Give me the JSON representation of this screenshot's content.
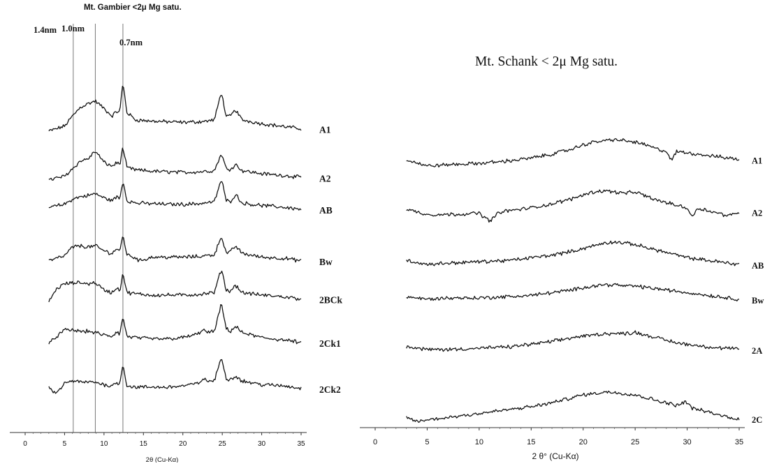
{
  "chart_data": [
    {
      "type": "line",
      "title": "Mt. Gambier   <2μ  Mg satu.",
      "xlabel": "2θ (Cu-Kα)",
      "xlim": [
        0,
        35
      ],
      "x_ticks": [
        "0",
        "5",
        "10",
        "15",
        "20",
        "25",
        "30",
        "35"
      ],
      "reference_lines": [
        {
          "label": "1.4nm",
          "x": 6.1
        },
        {
          "label": "1.0nm",
          "x": 8.9
        },
        {
          "label": "0.7nm",
          "x": 12.4
        }
      ],
      "series": [
        {
          "name": "A1",
          "x": [
            3,
            5,
            6,
            7,
            8,
            8.9,
            10,
            11,
            11.7,
            12,
            12.4,
            12.9,
            14,
            16,
            18,
            20,
            22,
            23,
            24,
            24.9,
            25.5,
            26,
            26.7,
            27.5,
            30,
            33,
            35
          ],
          "y": [
            52,
            60,
            76,
            90,
            96,
            100,
            88,
            76,
            84,
            82,
            130,
            82,
            70,
            68,
            67,
            66,
            67,
            68,
            70,
            115,
            74,
            76,
            86,
            70,
            64,
            59,
            56
          ]
        },
        {
          "name": "A2",
          "x": [
            3,
            5,
            6,
            7,
            8,
            8.9,
            10,
            11,
            11.7,
            12,
            12.4,
            12.9,
            14,
            16,
            18,
            20,
            22,
            24,
            24.9,
            25.5,
            26,
            26.7,
            27.5,
            30,
            33,
            35
          ],
          "y": [
            38,
            44,
            56,
            68,
            72,
            84,
            66,
            60,
            66,
            62,
            90,
            58,
            54,
            52,
            51,
            50,
            51,
            53,
            80,
            56,
            55,
            63,
            53,
            48,
            45,
            42
          ]
        },
        {
          "name": "AB",
          "x": [
            3,
            5,
            6,
            7,
            8,
            8.9,
            10,
            11,
            11.7,
            12,
            12.4,
            12.9,
            14,
            16,
            18,
            20,
            22,
            24,
            24.9,
            25.5,
            26,
            26.7,
            27.5,
            30,
            33,
            35
          ],
          "y": [
            45,
            50,
            58,
            62,
            64,
            67,
            60,
            56,
            62,
            58,
            88,
            56,
            52,
            51,
            50,
            50,
            51,
            54,
            90,
            56,
            54,
            66,
            52,
            48,
            45,
            42
          ]
        },
        {
          "name": "Bw",
          "x": [
            3,
            5,
            6,
            7,
            8,
            8.9,
            10,
            11,
            11.7,
            12,
            12.4,
            12.9,
            14,
            14.5,
            16,
            18,
            20,
            22,
            24,
            24.9,
            25.5,
            26,
            26.7,
            27.5,
            30,
            33,
            35
          ],
          "y": [
            40,
            48,
            62,
            64,
            62,
            64,
            56,
            52,
            60,
            54,
            82,
            50,
            45,
            40,
            46,
            46,
            46,
            47,
            50,
            80,
            52,
            54,
            64,
            52,
            46,
            44,
            40
          ]
        },
        {
          "name": "2BCk",
          "x": [
            3,
            4,
            5,
            6,
            7,
            8,
            8.9,
            10,
            11,
            11.7,
            12,
            12.4,
            12.9,
            14,
            16,
            18,
            20,
            22,
            24,
            24.9,
            25.5,
            26,
            26.7,
            27.5,
            30,
            33,
            35
          ],
          "y": [
            38,
            58,
            66,
            67,
            68,
            66,
            68,
            56,
            52,
            60,
            54,
            84,
            52,
            50,
            48,
            48,
            48,
            49,
            52,
            90,
            56,
            54,
            64,
            52,
            48,
            45,
            42
          ]
        },
        {
          "name": "2Ck1",
          "x": [
            3,
            4,
            5,
            6,
            7,
            8,
            8.9,
            10,
            11,
            11.7,
            12,
            12.4,
            12.9,
            14,
            16,
            18,
            20,
            22,
            22.5,
            23,
            24,
            24.9,
            25.5,
            26,
            26.7,
            27.5,
            30,
            33,
            35
          ],
          "y": [
            38,
            50,
            60,
            60,
            58,
            58,
            56,
            52,
            50,
            58,
            52,
            82,
            50,
            48,
            46,
            46,
            48,
            54,
            62,
            56,
            58,
            102,
            62,
            58,
            66,
            56,
            48,
            44,
            40
          ]
        },
        {
          "name": "2Ck2",
          "x": [
            3,
            4,
            5,
            6,
            7,
            8,
            8.9,
            10,
            11,
            11.7,
            12,
            12.4,
            12.9,
            14,
            16,
            18,
            20,
            22,
            22.5,
            23,
            24,
            24.9,
            25.5,
            26,
            26.7,
            27.5,
            30,
            33,
            35
          ],
          "y": [
            40,
            32,
            48,
            52,
            50,
            50,
            50,
            46,
            44,
            50,
            46,
            80,
            44,
            42,
            42,
            42,
            44,
            48,
            56,
            52,
            52,
            90,
            56,
            54,
            60,
            52,
            46,
            44,
            40
          ]
        }
      ]
    },
    {
      "type": "line",
      "title": "Mt. Schank < 2μ Mg satu.",
      "xlabel": "2 θ° (Cu-Kα)",
      "xlim": [
        0,
        35
      ],
      "x_ticks": [
        "0",
        "5",
        "10",
        "15",
        "20",
        "25",
        "30",
        "35"
      ],
      "series": [
        {
          "name": "A1",
          "x": [
            3,
            5,
            7,
            10,
            13,
            15,
            17,
            19,
            20,
            21,
            22,
            23,
            24,
            25,
            26,
            27,
            28,
            28.5,
            29,
            30,
            31,
            32,
            33,
            34,
            35
          ],
          "y": [
            50,
            40,
            42,
            44,
            48,
            52,
            58,
            66,
            72,
            76,
            78,
            80,
            78,
            76,
            72,
            66,
            62,
            48,
            62,
            60,
            58,
            56,
            54,
            52,
            50
          ]
        },
        {
          "name": "A2",
          "x": [
            3,
            5,
            7,
            10,
            11,
            12,
            15,
            17,
            19,
            20,
            21,
            22,
            23,
            24,
            25,
            26,
            27,
            28,
            29,
            30,
            30.5,
            31,
            32,
            33,
            34,
            35
          ],
          "y": [
            48,
            40,
            40,
            42,
            30,
            44,
            50,
            56,
            64,
            70,
            74,
            76,
            74,
            72,
            74,
            68,
            62,
            58,
            54,
            50,
            36,
            50,
            46,
            42,
            38,
            44
          ]
        },
        {
          "name": "AB",
          "x": [
            3,
            5,
            7,
            10,
            13,
            15,
            17,
            19,
            20,
            21,
            22,
            23,
            24,
            25,
            26,
            27,
            28,
            29,
            30,
            31,
            32,
            33,
            34,
            35
          ],
          "y": [
            44,
            38,
            40,
            42,
            44,
            48,
            52,
            58,
            62,
            66,
            70,
            72,
            70,
            68,
            64,
            60,
            56,
            52,
            48,
            46,
            44,
            42,
            40,
            38
          ]
        },
        {
          "name": "Bw",
          "x": [
            3,
            5,
            7,
            10,
            13,
            15,
            17,
            19,
            20,
            21,
            22,
            23,
            24,
            25,
            26,
            27,
            28,
            29,
            30,
            31,
            32,
            33,
            34,
            35
          ],
          "y": [
            42,
            38,
            40,
            40,
            42,
            44,
            48,
            52,
            56,
            58,
            60,
            60,
            58,
            58,
            56,
            54,
            52,
            50,
            48,
            46,
            44,
            42,
            40,
            38
          ]
        },
        {
          "name": "2A",
          "x": [
            3,
            5,
            7,
            10,
            13,
            15,
            17,
            19,
            20,
            21,
            22,
            23,
            24,
            25,
            26,
            27,
            28,
            29,
            30,
            31,
            32,
            33,
            34,
            35
          ],
          "y": [
            42,
            38,
            38,
            40,
            42,
            46,
            50,
            56,
            58,
            60,
            62,
            62,
            62,
            64,
            60,
            56,
            52,
            48,
            46,
            44,
            42,
            40,
            40,
            38
          ]
        },
        {
          "name": "2C",
          "x": [
            3,
            4,
            5,
            7,
            10,
            13,
            15,
            17,
            19,
            20,
            21,
            22,
            23,
            24,
            25,
            26,
            27,
            28,
            29,
            29.8,
            30.5,
            31,
            32,
            33,
            34,
            35
          ],
          "y": [
            36,
            30,
            32,
            36,
            42,
            48,
            52,
            58,
            66,
            70,
            72,
            74,
            74,
            72,
            70,
            66,
            62,
            58,
            54,
            60,
            50,
            48,
            44,
            40,
            36,
            34
          ]
        }
      ]
    }
  ]
}
